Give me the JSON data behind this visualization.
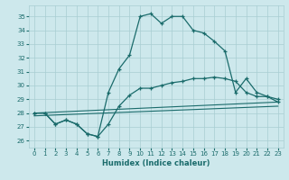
{
  "xlabel": "Humidex (Indice chaleur)",
  "xlim": [
    -0.5,
    23.5
  ],
  "ylim": [
    25.5,
    35.8
  ],
  "yticks": [
    26,
    27,
    28,
    29,
    30,
    31,
    32,
    33,
    34,
    35
  ],
  "xticks": [
    0,
    1,
    2,
    3,
    4,
    5,
    6,
    7,
    8,
    9,
    10,
    11,
    12,
    13,
    14,
    15,
    16,
    17,
    18,
    19,
    20,
    21,
    22,
    23
  ],
  "bg_color": "#cde8ec",
  "grid_color": "#a8cdd2",
  "line_color": "#1a6b6b",
  "line1_x": [
    0,
    1,
    2,
    3,
    4,
    5,
    6,
    7,
    8,
    9,
    10,
    11,
    12,
    13,
    14,
    15,
    16,
    17,
    18,
    19,
    20,
    21,
    22,
    23
  ],
  "line1_y": [
    28.0,
    28.0,
    27.2,
    27.5,
    27.2,
    26.5,
    26.3,
    29.5,
    31.2,
    32.2,
    35.0,
    35.2,
    34.5,
    35.0,
    35.0,
    34.0,
    33.8,
    33.2,
    32.5,
    29.5,
    30.5,
    29.5,
    29.2,
    29.0
  ],
  "line2_x": [
    0,
    1,
    2,
    3,
    4,
    5,
    6,
    7,
    8,
    9,
    10,
    11,
    12,
    13,
    14,
    15,
    16,
    17,
    18,
    19,
    20,
    21,
    22,
    23
  ],
  "line2_y": [
    28.0,
    28.0,
    27.2,
    27.5,
    27.2,
    26.5,
    26.3,
    27.2,
    28.5,
    29.3,
    29.8,
    29.8,
    30.0,
    30.2,
    30.3,
    30.5,
    30.5,
    30.6,
    30.5,
    30.3,
    29.5,
    29.2,
    29.2,
    28.8
  ],
  "line3_x": [
    0,
    23
  ],
  "line3_y": [
    28.0,
    28.8
  ],
  "line4_x": [
    0,
    23
  ],
  "line4_y": [
    27.8,
    28.5
  ]
}
